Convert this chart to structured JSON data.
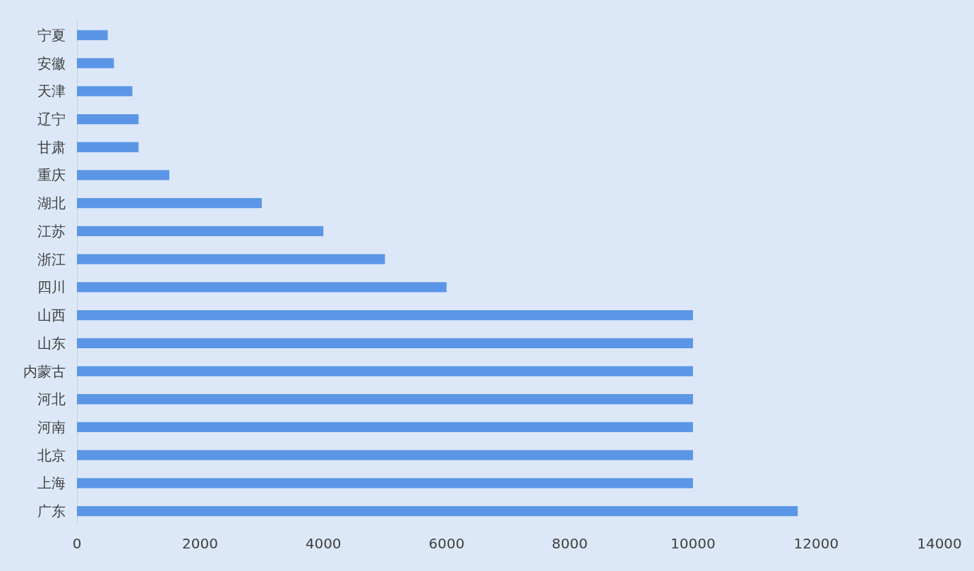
{
  "chart_data": {
    "type": "bar",
    "orientation": "horizontal",
    "categories": [
      "宁夏",
      "安徽",
      "天津",
      "辽宁",
      "甘肃",
      "重庆",
      "湖北",
      "江苏",
      "浙江",
      "四川",
      "山西",
      "山东",
      "内蒙古",
      "河北",
      "河南",
      "北京",
      "上海",
      "广东"
    ],
    "values": [
      500,
      600,
      900,
      1000,
      1000,
      1500,
      3000,
      4000,
      5000,
      6000,
      10000,
      10000,
      10000,
      10000,
      10000,
      10000,
      10000,
      11700
    ],
    "color": "#5b96e6",
    "xlim": [
      0,
      14000
    ],
    "xticks": [
      0,
      2000,
      4000,
      6000,
      8000,
      10000,
      12000,
      14000
    ]
  }
}
